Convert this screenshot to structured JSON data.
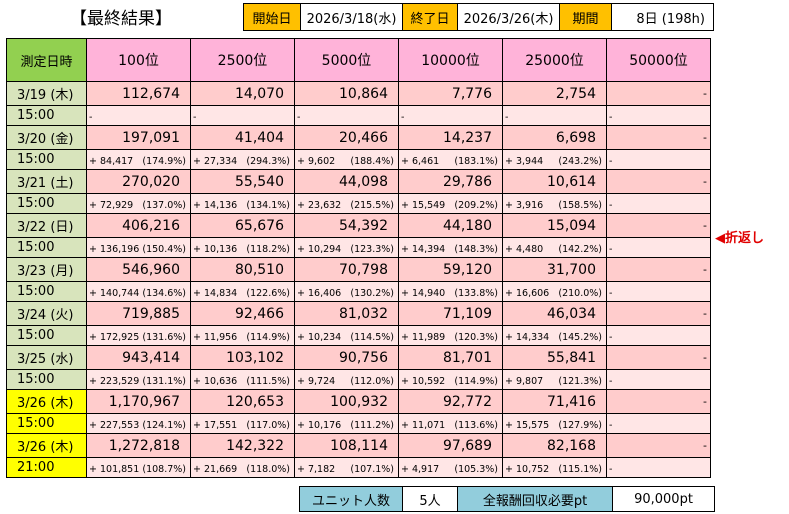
{
  "header": {
    "title": "【最終結果】",
    "start_label": "開始日",
    "start_value": "2026/3/18(水)",
    "end_label": "終了日",
    "end_value": "2026/3/26(木)",
    "period_label": "期間",
    "period_value": "8日 (198h)"
  },
  "table": {
    "date_header": "測定日時",
    "ranks": [
      "100位",
      "2500位",
      "5000位",
      "10000位",
      "25000位",
      "50000位"
    ],
    "rows": [
      {
        "date": "3/19 (木)",
        "time": "15:00",
        "highlight": false,
        "values": [
          "112,674",
          "14,070",
          "10,864",
          "7,776",
          "2,754",
          "-"
        ],
        "subs": [
          [
            "-",
            ""
          ],
          [
            "-",
            ""
          ],
          [
            "-",
            ""
          ],
          [
            "-",
            ""
          ],
          [
            "-",
            ""
          ],
          [
            "-",
            ""
          ]
        ]
      },
      {
        "date": "3/20 (金)",
        "time": "15:00",
        "highlight": false,
        "values": [
          "197,091",
          "41,404",
          "20,466",
          "14,237",
          "6,698",
          "-"
        ],
        "subs": [
          [
            "+ 84,417",
            "(174.9%)"
          ],
          [
            "+ 27,334",
            "(294.3%)"
          ],
          [
            "+ 9,602",
            "(188.4%)"
          ],
          [
            "+ 6,461",
            "(183.1%)"
          ],
          [
            "+ 3,944",
            "(243.2%)"
          ],
          [
            "-",
            ""
          ]
        ]
      },
      {
        "date": "3/21 (土)",
        "time": "15:00",
        "highlight": false,
        "values": [
          "270,020",
          "55,540",
          "44,098",
          "29,786",
          "10,614",
          "-"
        ],
        "subs": [
          [
            "+ 72,929",
            "(137.0%)"
          ],
          [
            "+ 14,136",
            "(134.1%)"
          ],
          [
            "+ 23,632",
            "(215.5%)"
          ],
          [
            "+ 15,549",
            "(209.2%)"
          ],
          [
            "+ 3,916",
            "(158.5%)"
          ],
          [
            "-",
            ""
          ]
        ]
      },
      {
        "date": "3/22 (日)",
        "time": "15:00",
        "highlight": false,
        "values": [
          "406,216",
          "65,676",
          "54,392",
          "44,180",
          "15,094",
          "-"
        ],
        "subs": [
          [
            "+ 136,196",
            "(150.4%)"
          ],
          [
            "+ 10,136",
            "(118.2%)"
          ],
          [
            "+ 10,294",
            "(123.3%)"
          ],
          [
            "+ 14,394",
            "(148.3%)"
          ],
          [
            "+ 4,480",
            "(142.2%)"
          ],
          [
            "-",
            ""
          ]
        ]
      },
      {
        "date": "3/23 (月)",
        "time": "15:00",
        "highlight": false,
        "values": [
          "546,960",
          "80,510",
          "70,798",
          "59,120",
          "31,700",
          "-"
        ],
        "subs": [
          [
            "+ 140,744",
            "(134.6%)"
          ],
          [
            "+ 14,834",
            "(122.6%)"
          ],
          [
            "+ 16,406",
            "(130.2%)"
          ],
          [
            "+ 14,940",
            "(133.8%)"
          ],
          [
            "+ 16,606",
            "(210.0%)"
          ],
          [
            "-",
            ""
          ]
        ]
      },
      {
        "date": "3/24 (火)",
        "time": "15:00",
        "highlight": false,
        "values": [
          "719,885",
          "92,466",
          "81,032",
          "71,109",
          "46,034",
          "-"
        ],
        "subs": [
          [
            "+ 172,925",
            "(131.6%)"
          ],
          [
            "+ 11,956",
            "(114.9%)"
          ],
          [
            "+ 10,234",
            "(114.5%)"
          ],
          [
            "+ 11,989",
            "(120.3%)"
          ],
          [
            "+ 14,334",
            "(145.2%)"
          ],
          [
            "-",
            ""
          ]
        ]
      },
      {
        "date": "3/25 (水)",
        "time": "15:00",
        "highlight": false,
        "values": [
          "943,414",
          "103,102",
          "90,756",
          "81,701",
          "55,841",
          "-"
        ],
        "subs": [
          [
            "+ 223,529",
            "(131.1%)"
          ],
          [
            "+ 10,636",
            "(111.5%)"
          ],
          [
            "+ 9,724",
            "(112.0%)"
          ],
          [
            "+ 10,592",
            "(114.9%)"
          ],
          [
            "+ 9,807",
            "(121.3%)"
          ],
          [
            "-",
            ""
          ]
        ]
      },
      {
        "date": "3/26 (木)",
        "time": "15:00",
        "highlight": true,
        "values": [
          "1,170,967",
          "120,653",
          "100,932",
          "92,772",
          "71,416",
          "-"
        ],
        "subs": [
          [
            "+ 227,553",
            "(124.1%)"
          ],
          [
            "+ 17,551",
            "(117.0%)"
          ],
          [
            "+ 10,176",
            "(111.2%)"
          ],
          [
            "+ 11,071",
            "(113.6%)"
          ],
          [
            "+ 15,575",
            "(127.9%)"
          ],
          [
            "-",
            ""
          ]
        ]
      },
      {
        "date": "3/26 (木)",
        "time": "21:00",
        "highlight": true,
        "values": [
          "1,272,818",
          "142,322",
          "108,114",
          "97,689",
          "82,168",
          "-"
        ],
        "subs": [
          [
            "+ 101,851",
            "(108.7%)"
          ],
          [
            "+ 21,669",
            "(118.0%)"
          ],
          [
            "+ 7,182",
            "(107.1%)"
          ],
          [
            "+ 4,917",
            "(105.3%)"
          ],
          [
            "+ 10,752",
            "(115.1%)"
          ],
          [
            "-",
            ""
          ]
        ]
      }
    ]
  },
  "note": "◀折返し",
  "footer": {
    "unit_label": "ユニット人数",
    "unit_value": "5人",
    "pt_label": "全報酬回収必要pt",
    "pt_value": "90,000pt"
  }
}
